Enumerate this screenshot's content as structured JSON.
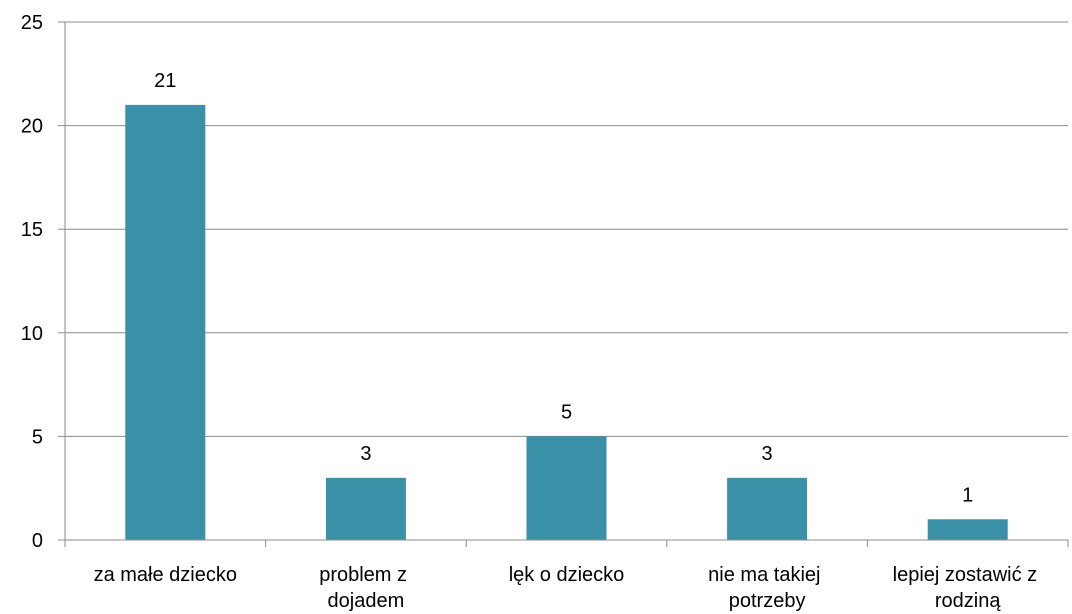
{
  "chart_data": {
    "type": "bar",
    "categories": [
      "za małe dziecko",
      "problem z dojadem",
      "lęk o dziecko",
      "nie ma takiej potrzeby",
      "lepiej zostawić z rodziną"
    ],
    "values": [
      21,
      3,
      5,
      3,
      1
    ],
    "color": "#3a90a7",
    "ylim": [
      0,
      25
    ],
    "yticks": [
      0,
      5,
      10,
      15,
      20,
      25
    ],
    "grid": true
  }
}
